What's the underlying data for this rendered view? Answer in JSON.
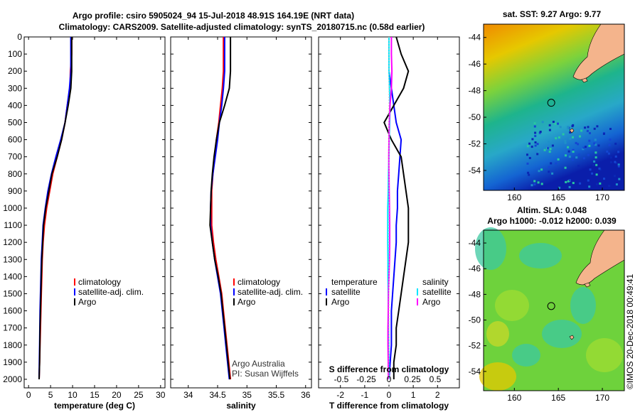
{
  "figure": {
    "title_line1": "Argo profile: csiro 5905024_94 15-Jul-2018 48.91S 164.19E (NRT data)",
    "title_line2": "Climatology: CARS2009. Satellite-adjusted climatology: synTS_20180715.nc (0.58d earlier)",
    "credit_line1": "Argo Australia",
    "credit_line2": "PI: Susan Wijffels",
    "watermark": "©IMOS 20-Dec-2018 00:49:41"
  },
  "colors": {
    "climatology": "#ff0000",
    "satellite_adj": "#0000ff",
    "argo": "#000000",
    "salinity_diff_satellite": "#00e5ff",
    "salinity_diff_argo": "#ff00ff",
    "land": "#f4b48c"
  },
  "chart_data": [
    {
      "type": "line",
      "xlabel": "temperature (deg C)",
      "xlim": [
        -1,
        31
      ],
      "xticks": [
        0,
        5,
        10,
        15,
        20,
        25,
        30
      ],
      "ylim": [
        2050,
        0
      ],
      "yticks": [
        0,
        100,
        200,
        300,
        400,
        500,
        600,
        700,
        800,
        900,
        1000,
        1100,
        1200,
        1300,
        1400,
        1500,
        1600,
        1700,
        1800,
        1900,
        2000
      ],
      "series": [
        {
          "name": "climatology",
          "x": [
            9.8,
            9.8,
            9.5,
            9.4,
            8.8,
            8.3,
            7.5,
            6.5,
            5.5,
            4.8,
            4.1,
            3.6,
            3.3,
            3.1,
            3.0,
            2.9,
            2.8,
            2.7,
            2.6,
            2.5,
            2.4
          ],
          "y": [
            0,
            100,
            200,
            300,
            400,
            500,
            600,
            700,
            800,
            900,
            1000,
            1100,
            1200,
            1300,
            1400,
            1500,
            1600,
            1700,
            1800,
            1900,
            2000
          ]
        },
        {
          "name": "satellite-adj. clim.",
          "x": [
            9.6,
            9.6,
            9.6,
            9.3,
            8.8,
            8.3,
            7.3,
            6.2,
            5.2,
            4.4,
            3.8,
            3.3,
            3.1,
            2.9,
            2.8,
            2.7,
            2.6,
            2.55,
            2.5,
            2.45,
            2.4
          ],
          "y": [
            0,
            100,
            200,
            300,
            400,
            500,
            600,
            700,
            800,
            900,
            1000,
            1100,
            1200,
            1300,
            1400,
            1500,
            1600,
            1700,
            1800,
            1900,
            2000
          ]
        },
        {
          "name": "Argo",
          "x": [
            9.8,
            9.8,
            9.8,
            9.6,
            9.0,
            8.3,
            7.5,
            6.5,
            5.3,
            4.6,
            3.9,
            3.4,
            3.2,
            3.0,
            2.9,
            2.8,
            2.7,
            2.6,
            2.55,
            2.5,
            2.4
          ],
          "y": [
            0,
            100,
            200,
            300,
            400,
            500,
            600,
            700,
            800,
            900,
            1000,
            1100,
            1200,
            1300,
            1400,
            1500,
            1600,
            1700,
            1800,
            1900,
            2000
          ]
        }
      ],
      "legend": [
        "climatology",
        "satellite-adj. clim.",
        "Argo"
      ]
    },
    {
      "type": "line",
      "xlabel": "salinity",
      "xlim": [
        33.7,
        36.1
      ],
      "xticks": [
        34,
        34.5,
        35,
        35.5,
        36
      ],
      "ylim": [
        2050,
        0
      ],
      "series": [
        {
          "name": "climatology",
          "x": [
            34.6,
            34.6,
            34.6,
            34.58,
            34.55,
            34.52,
            34.48,
            34.45,
            34.42,
            34.4,
            34.4,
            34.4,
            34.43,
            34.47,
            34.52,
            34.57,
            34.6,
            34.63,
            34.66,
            34.69,
            34.72
          ],
          "y": [
            0,
            100,
            200,
            300,
            400,
            500,
            600,
            700,
            800,
            900,
            1000,
            1100,
            1200,
            1300,
            1400,
            1500,
            1600,
            1700,
            1800,
            1900,
            2000
          ]
        },
        {
          "name": "satellite-adj. clim.",
          "x": [
            34.62,
            34.62,
            34.62,
            34.6,
            34.57,
            34.53,
            34.5,
            34.46,
            34.42,
            34.39,
            34.38,
            34.38,
            34.41,
            34.45,
            34.5,
            34.55,
            34.58,
            34.61,
            34.64,
            34.67,
            34.7
          ],
          "y": [
            0,
            100,
            200,
            300,
            400,
            500,
            600,
            700,
            800,
            900,
            1000,
            1100,
            1200,
            1300,
            1400,
            1500,
            1600,
            1700,
            1800,
            1900,
            2000
          ]
        },
        {
          "name": "Argo",
          "x": [
            34.72,
            34.72,
            34.72,
            34.7,
            34.62,
            34.53,
            34.48,
            34.44,
            34.41,
            34.39,
            34.38,
            34.37,
            34.41,
            34.45,
            34.51,
            34.56,
            34.59,
            34.62,
            34.65,
            34.68,
            34.71
          ],
          "y": [
            0,
            100,
            200,
            300,
            400,
            500,
            600,
            700,
            800,
            900,
            1000,
            1100,
            1200,
            1300,
            1400,
            1500,
            1600,
            1700,
            1800,
            1900,
            2000
          ]
        }
      ],
      "legend": [
        "climatology",
        "satellite-adj. clim.",
        "Argo"
      ]
    },
    {
      "type": "line",
      "xlabel": "T difference from climatology",
      "xlim": [
        -2.9,
        2.9
      ],
      "xticks": [
        -2,
        -1,
        0,
        1,
        2
      ],
      "secondary_xlabel": "S difference from climatology",
      "secondary_xticks": [
        "-0.5",
        "-0.25",
        "0",
        "0.25",
        "0.5"
      ],
      "ylim": [
        2050,
        0
      ],
      "series": [
        {
          "name": "temperature satellite",
          "x": [
            0,
            0,
            0,
            0.1,
            0.2,
            0.3,
            0.5,
            0.45,
            0.4,
            0.35,
            0.35,
            0.3,
            0.3,
            0.25,
            0.2,
            0.15,
            0.1,
            0.1,
            0.1,
            0.05,
            0
          ],
          "y": [
            0,
            100,
            200,
            300,
            400,
            500,
            600,
            700,
            800,
            900,
            1000,
            1100,
            1200,
            1300,
            1400,
            1500,
            1600,
            1700,
            1800,
            1900,
            2000
          ]
        },
        {
          "name": "temperature Argo",
          "x": [
            0.3,
            0.5,
            0.8,
            0.6,
            0.2,
            -0.2,
            0.1,
            0.5,
            0.6,
            0.7,
            0.8,
            0.8,
            0.8,
            0.7,
            0.6,
            0.5,
            0.4,
            0.3,
            0.3,
            0.2,
            0.2
          ],
          "y": [
            0,
            100,
            200,
            300,
            400,
            500,
            600,
            700,
            800,
            900,
            1000,
            1100,
            1200,
            1300,
            1400,
            1500,
            1600,
            1700,
            1800,
            1900,
            2000
          ]
        },
        {
          "name": "salinity satellite",
          "x": [
            0,
            0,
            0,
            0.02,
            0.04,
            0.03,
            0.01,
            0,
            -0.02,
            -0.03,
            -0.05,
            -0.05,
            -0.05,
            -0.04,
            -0.04,
            -0.03,
            -0.03,
            -0.02,
            -0.01,
            -0.01,
            0
          ],
          "y": [
            0,
            100,
            200,
            300,
            400,
            500,
            600,
            700,
            800,
            900,
            1000,
            1100,
            1200,
            1300,
            1400,
            1500,
            1600,
            1700,
            1800,
            1900,
            2000
          ]
        },
        {
          "name": "salinity Argo",
          "x": [
            0.1,
            0.1,
            0.12,
            0.1,
            0.04,
            0.01,
            0,
            -0.01,
            0,
            0.01,
            0.02,
            0.03,
            0.03,
            0.02,
            0,
            -0.02,
            -0.03,
            -0.04,
            -0.04,
            -0.03,
            -0.02
          ],
          "y": [
            0,
            100,
            200,
            300,
            400,
            500,
            600,
            700,
            800,
            900,
            1000,
            1100,
            1200,
            1300,
            1400,
            1500,
            1600,
            1700,
            1800,
            1900,
            2000
          ]
        }
      ],
      "legend_left_heading": "temperature",
      "legend_right_heading": "salinity",
      "legend": [
        "satellite",
        "Argo",
        "satellite",
        "Argo"
      ]
    },
    {
      "type": "heatmap",
      "title": "sat. SST: 9.27 Argo: 9.77",
      "xlim": [
        156.5,
        172.5
      ],
      "xticks": [
        160,
        165,
        170
      ],
      "ylim": [
        -55.5,
        -43
      ],
      "yticks": [
        -44,
        -46,
        -48,
        -50,
        -52,
        -54
      ],
      "marker": {
        "lon": 164.19,
        "lat": -48.91
      }
    },
    {
      "type": "heatmap",
      "title_line1": "Altim. SLA: 0.048",
      "title_line2": "Argo h1000: -0.012 h2000: 0.039",
      "xlim": [
        156.5,
        172.5
      ],
      "xticks": [
        160,
        165,
        170
      ],
      "ylim": [
        -55.5,
        -43
      ],
      "yticks": [
        -44,
        -46,
        -48,
        -50,
        -52,
        -54
      ],
      "marker": {
        "lon": 164.19,
        "lat": -48.91
      }
    }
  ]
}
